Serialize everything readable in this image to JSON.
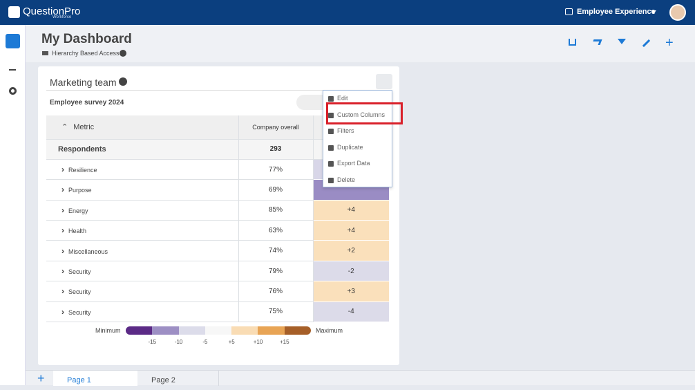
{
  "header": {
    "brand": "QuestionPro",
    "brand_sub": "Workforce",
    "product": "Employee Experience"
  },
  "page": {
    "title": "My Dashboard",
    "subtitle": "Hierarchy Based Access"
  },
  "widget": {
    "title": "Marketing team",
    "survey": "Employee survey 2024",
    "table": {
      "metric_header": "Metric",
      "overall_header": "Company overall",
      "respondents": {
        "label": "Respondents",
        "value": "293"
      },
      "rows": [
        {
          "name": "Resilience",
          "overall": "77%",
          "diff": null,
          "color": "#d8d6e8"
        },
        {
          "name": "Purpose",
          "overall": "69%",
          "diff": null,
          "color": "#9a8cc4"
        },
        {
          "name": "Energy",
          "overall": "85%",
          "diff": "+4",
          "color": "#fae0bb"
        },
        {
          "name": "Health",
          "overall": "63%",
          "diff": "+4",
          "color": "#fae0bb"
        },
        {
          "name": "Miscellaneous",
          "overall": "74%",
          "diff": "+2",
          "color": "#fae0bb"
        },
        {
          "name": "Security",
          "overall": "79%",
          "diff": "-2",
          "color": "#dcdbe9"
        },
        {
          "name": "Security",
          "overall": "76%",
          "diff": "+3",
          "color": "#fae0bb"
        },
        {
          "name": "Security",
          "overall": "75%",
          "diff": "-4",
          "color": "#dcdbe9"
        }
      ]
    }
  },
  "menu": [
    "Edit",
    "Custom Columns",
    "Filters",
    "Duplicate",
    "Export Data",
    "Delete"
  ],
  "legend": {
    "min": "Minimum",
    "max": "Maximum",
    "colors": [
      "#5b2a86",
      "#9d8fc4",
      "#dcdcea",
      "#f7f7f7",
      "#f9dcb4",
      "#e8a455",
      "#a65f28"
    ],
    "ticks": [
      "-15",
      "-10",
      "-5",
      "+5",
      "+10",
      "+15"
    ]
  },
  "tabs": [
    "Page 1",
    "Page 2"
  ]
}
